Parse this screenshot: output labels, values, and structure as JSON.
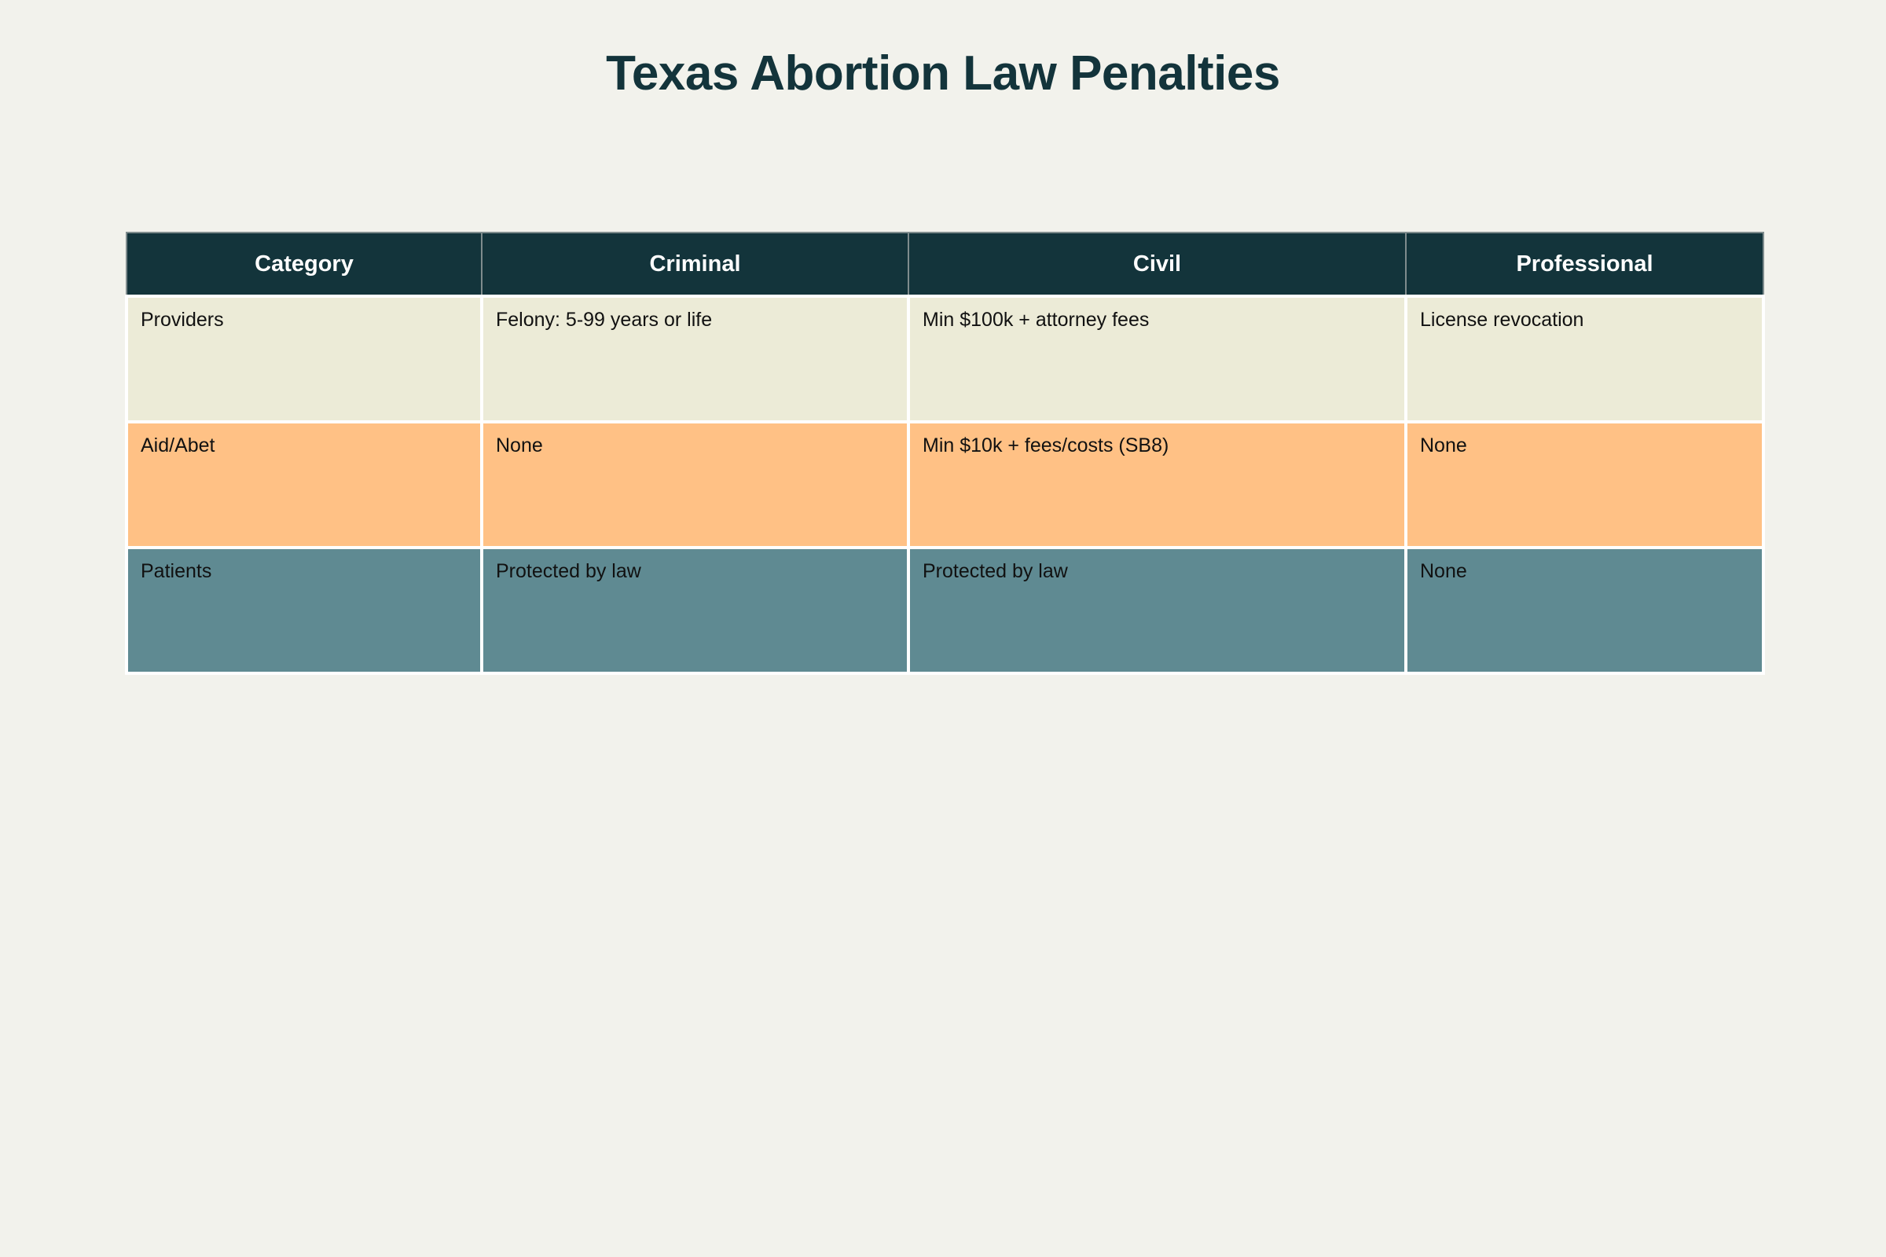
{
  "title": "Texas Abortion Law Penalties",
  "chart_data": {
    "type": "table",
    "title": "Texas Abortion Law Penalties",
    "columns": [
      "Category",
      "Criminal",
      "Civil",
      "Professional"
    ],
    "rows": [
      {
        "cells": [
          "Providers",
          "Felony: 5-99 years or life",
          "Min $100k + attorney fees",
          "License revocation"
        ],
        "fill": "#ecebd7"
      },
      {
        "cells": [
          "Aid/Abet",
          "None",
          "Min $10k + fees/costs (SB8)",
          "None"
        ],
        "fill": "#ffc185"
      },
      {
        "cells": [
          "Patients",
          "Protected by law",
          "Protected by law",
          "None"
        ],
        "fill": "#5f8a92"
      }
    ]
  },
  "colors": {
    "background": "#f2f2ec",
    "header_fill": "#13343b",
    "header_text": "#ffffff",
    "cell_text": "#111111"
  }
}
